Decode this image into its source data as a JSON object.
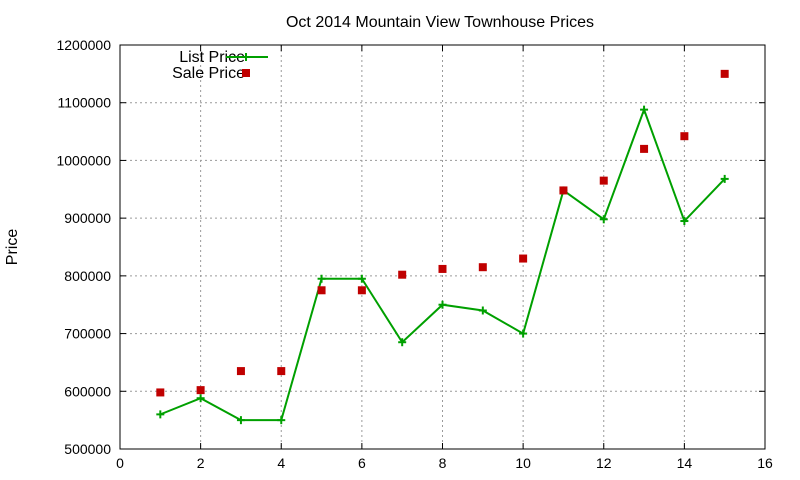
{
  "chart_data": {
    "type": "line",
    "title": "Oct 2014 Mountain View Townhouse Prices",
    "xlabel": "",
    "ylabel": "Price",
    "xlim": [
      0,
      16
    ],
    "ylim": [
      500000,
      1200000
    ],
    "xticks": [
      0,
      2,
      4,
      6,
      8,
      10,
      12,
      14,
      16
    ],
    "yticks": [
      500000,
      600000,
      700000,
      800000,
      900000,
      1000000,
      1100000,
      1200000
    ],
    "grid": true,
    "legend_position": "top-left",
    "series": [
      {
        "name": "List Price",
        "style": "line-with-plus-markers",
        "color": "#00a000",
        "x": [
          1,
          2,
          3,
          4,
          5,
          6,
          7,
          8,
          9,
          10,
          11,
          12,
          13,
          14,
          15
        ],
        "y": [
          560000,
          588000,
          550000,
          550000,
          795000,
          795000,
          685000,
          750000,
          740000,
          700000,
          948000,
          898000,
          1088000,
          895000,
          968000
        ]
      },
      {
        "name": "Sale Price",
        "style": "square-markers",
        "color": "#c00000",
        "x": [
          1,
          2,
          3,
          4,
          5,
          6,
          7,
          8,
          9,
          10,
          11,
          12,
          13,
          14,
          15
        ],
        "y": [
          598000,
          602000,
          635000,
          635000,
          775000,
          775000,
          802000,
          812000,
          815000,
          830000,
          948000,
          965000,
          1020000,
          1042000,
          1150000
        ]
      }
    ]
  }
}
